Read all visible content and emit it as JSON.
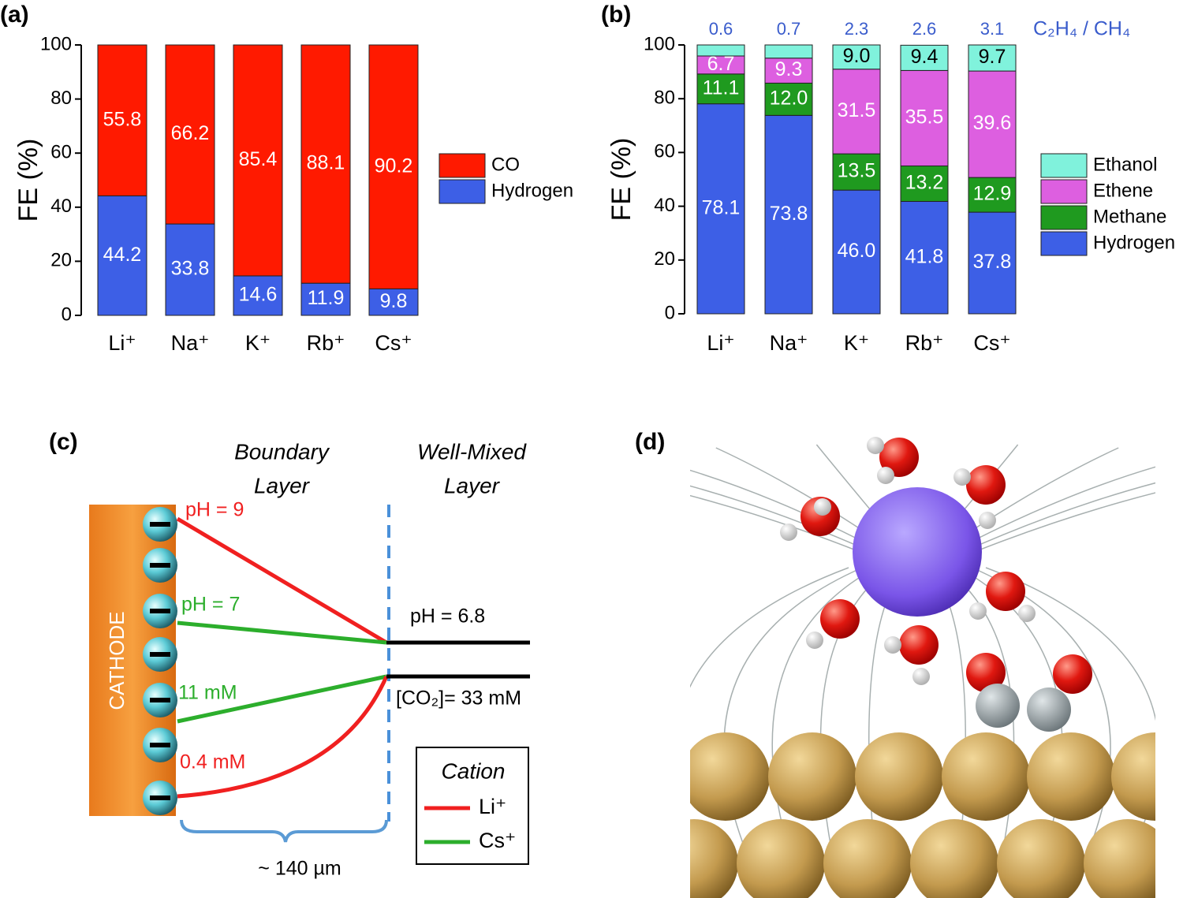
{
  "chart_data": [
    {
      "type": "stacked_bar",
      "panel_label": "(a)",
      "ylabel": "FE (%)",
      "categories": [
        "Li⁺",
        "Na⁺",
        "K⁺",
        "Rb⁺",
        "Cs⁺"
      ],
      "series": [
        {
          "name": "Hydrogen",
          "color": "#3d5fe6",
          "values": [
            44.2,
            33.8,
            14.6,
            11.9,
            9.8
          ]
        },
        {
          "name": "CO",
          "color": "#ff1a00",
          "values": [
            55.8,
            66.2,
            85.4,
            88.1,
            90.2
          ]
        }
      ],
      "ylim": [
        0,
        100
      ],
      "yticks": [
        0,
        20,
        40,
        60,
        80,
        100
      ],
      "grid": false
    },
    {
      "type": "stacked_bar",
      "panel_label": "(b)",
      "ylabel": "FE (%)",
      "categories": [
        "Li⁺",
        "Na⁺",
        "K⁺",
        "Rb⁺",
        "Cs⁺"
      ],
      "series": [
        {
          "name": "Hydrogen",
          "color": "#3d5fe6",
          "values": [
            78.1,
            73.8,
            46,
            41.8,
            37.8
          ],
          "value_labels": [
            "78.1",
            "73.8",
            "46.0",
            "41.8",
            "37.8"
          ]
        },
        {
          "name": "Methane",
          "color": "#1f9a1f",
          "values": [
            11.1,
            12,
            13.5,
            13.2,
            12.9
          ],
          "value_labels": [
            "11.1",
            "12.0",
            "13.5",
            "13.2",
            "12.9"
          ]
        },
        {
          "name": "Ethene",
          "color": "#dd5fe0",
          "values": [
            6.7,
            9.3,
            31.5,
            35.5,
            39.6
          ]
        },
        {
          "name": "Ethanol",
          "color": "#80f2dc",
          "values": [
            4.1,
            4.9,
            9,
            9.4,
            9.7
          ],
          "value_labels": [
            null,
            null,
            "9.0",
            "9.4",
            "9.7"
          ]
        }
      ],
      "ratios": [
        0.6,
        0.7,
        2.3,
        2.6,
        3.1
      ],
      "ratio_label": "C₂H₄ / CH₄",
      "ylim": [
        0,
        100
      ],
      "yticks": [
        0,
        20,
        40,
        60,
        80,
        100
      ],
      "grid": false
    }
  ],
  "panel_c": {
    "label": "(c)",
    "boundary_layer": [
      "Boundary",
      "Layer"
    ],
    "well_mixed_layer": [
      "Well-Mixed",
      "Layer"
    ],
    "cathode": "CATHODE",
    "ph_li": "pH = 9",
    "ph_cs": "pH = 7",
    "co2_cs": "11 mM",
    "co2_li": "0.4 mM",
    "ph_bulk": "pH = 6.8",
    "co2_bulk": "[CO₂]= 33 mM",
    "thickness": "~ 140 µm",
    "legend": {
      "title": "Cation",
      "items": [
        "Li⁺",
        "Cs⁺"
      ]
    }
  },
  "panel_d": {
    "label": "(d)"
  }
}
